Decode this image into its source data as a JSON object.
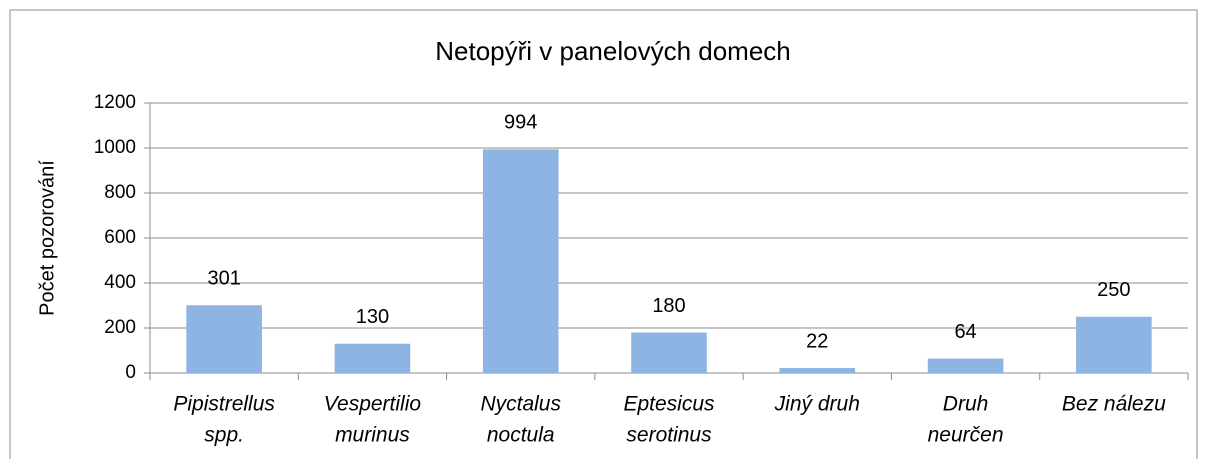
{
  "chart_data": {
    "type": "bar",
    "title": "Netopýři v panelových domech",
    "y_label": "Počet pozorování",
    "categories": [
      [
        "Pipistrellus",
        "spp."
      ],
      [
        "Vespertilio",
        "murinus"
      ],
      [
        "Nyctalus",
        "noctula"
      ],
      [
        "Eptesicus",
        "serotinus"
      ],
      [
        "Jiný druh"
      ],
      [
        "Druh",
        "neurčen"
      ],
      [
        "Bez nálezu"
      ]
    ],
    "values": [
      301,
      130,
      994,
      180,
      22,
      64,
      250
    ],
    "color": "#8eb4e3",
    "ylim": [
      0,
      1200
    ],
    "yticks": [
      0,
      200,
      400,
      600,
      800,
      1000,
      1200
    ],
    "grid": true
  }
}
